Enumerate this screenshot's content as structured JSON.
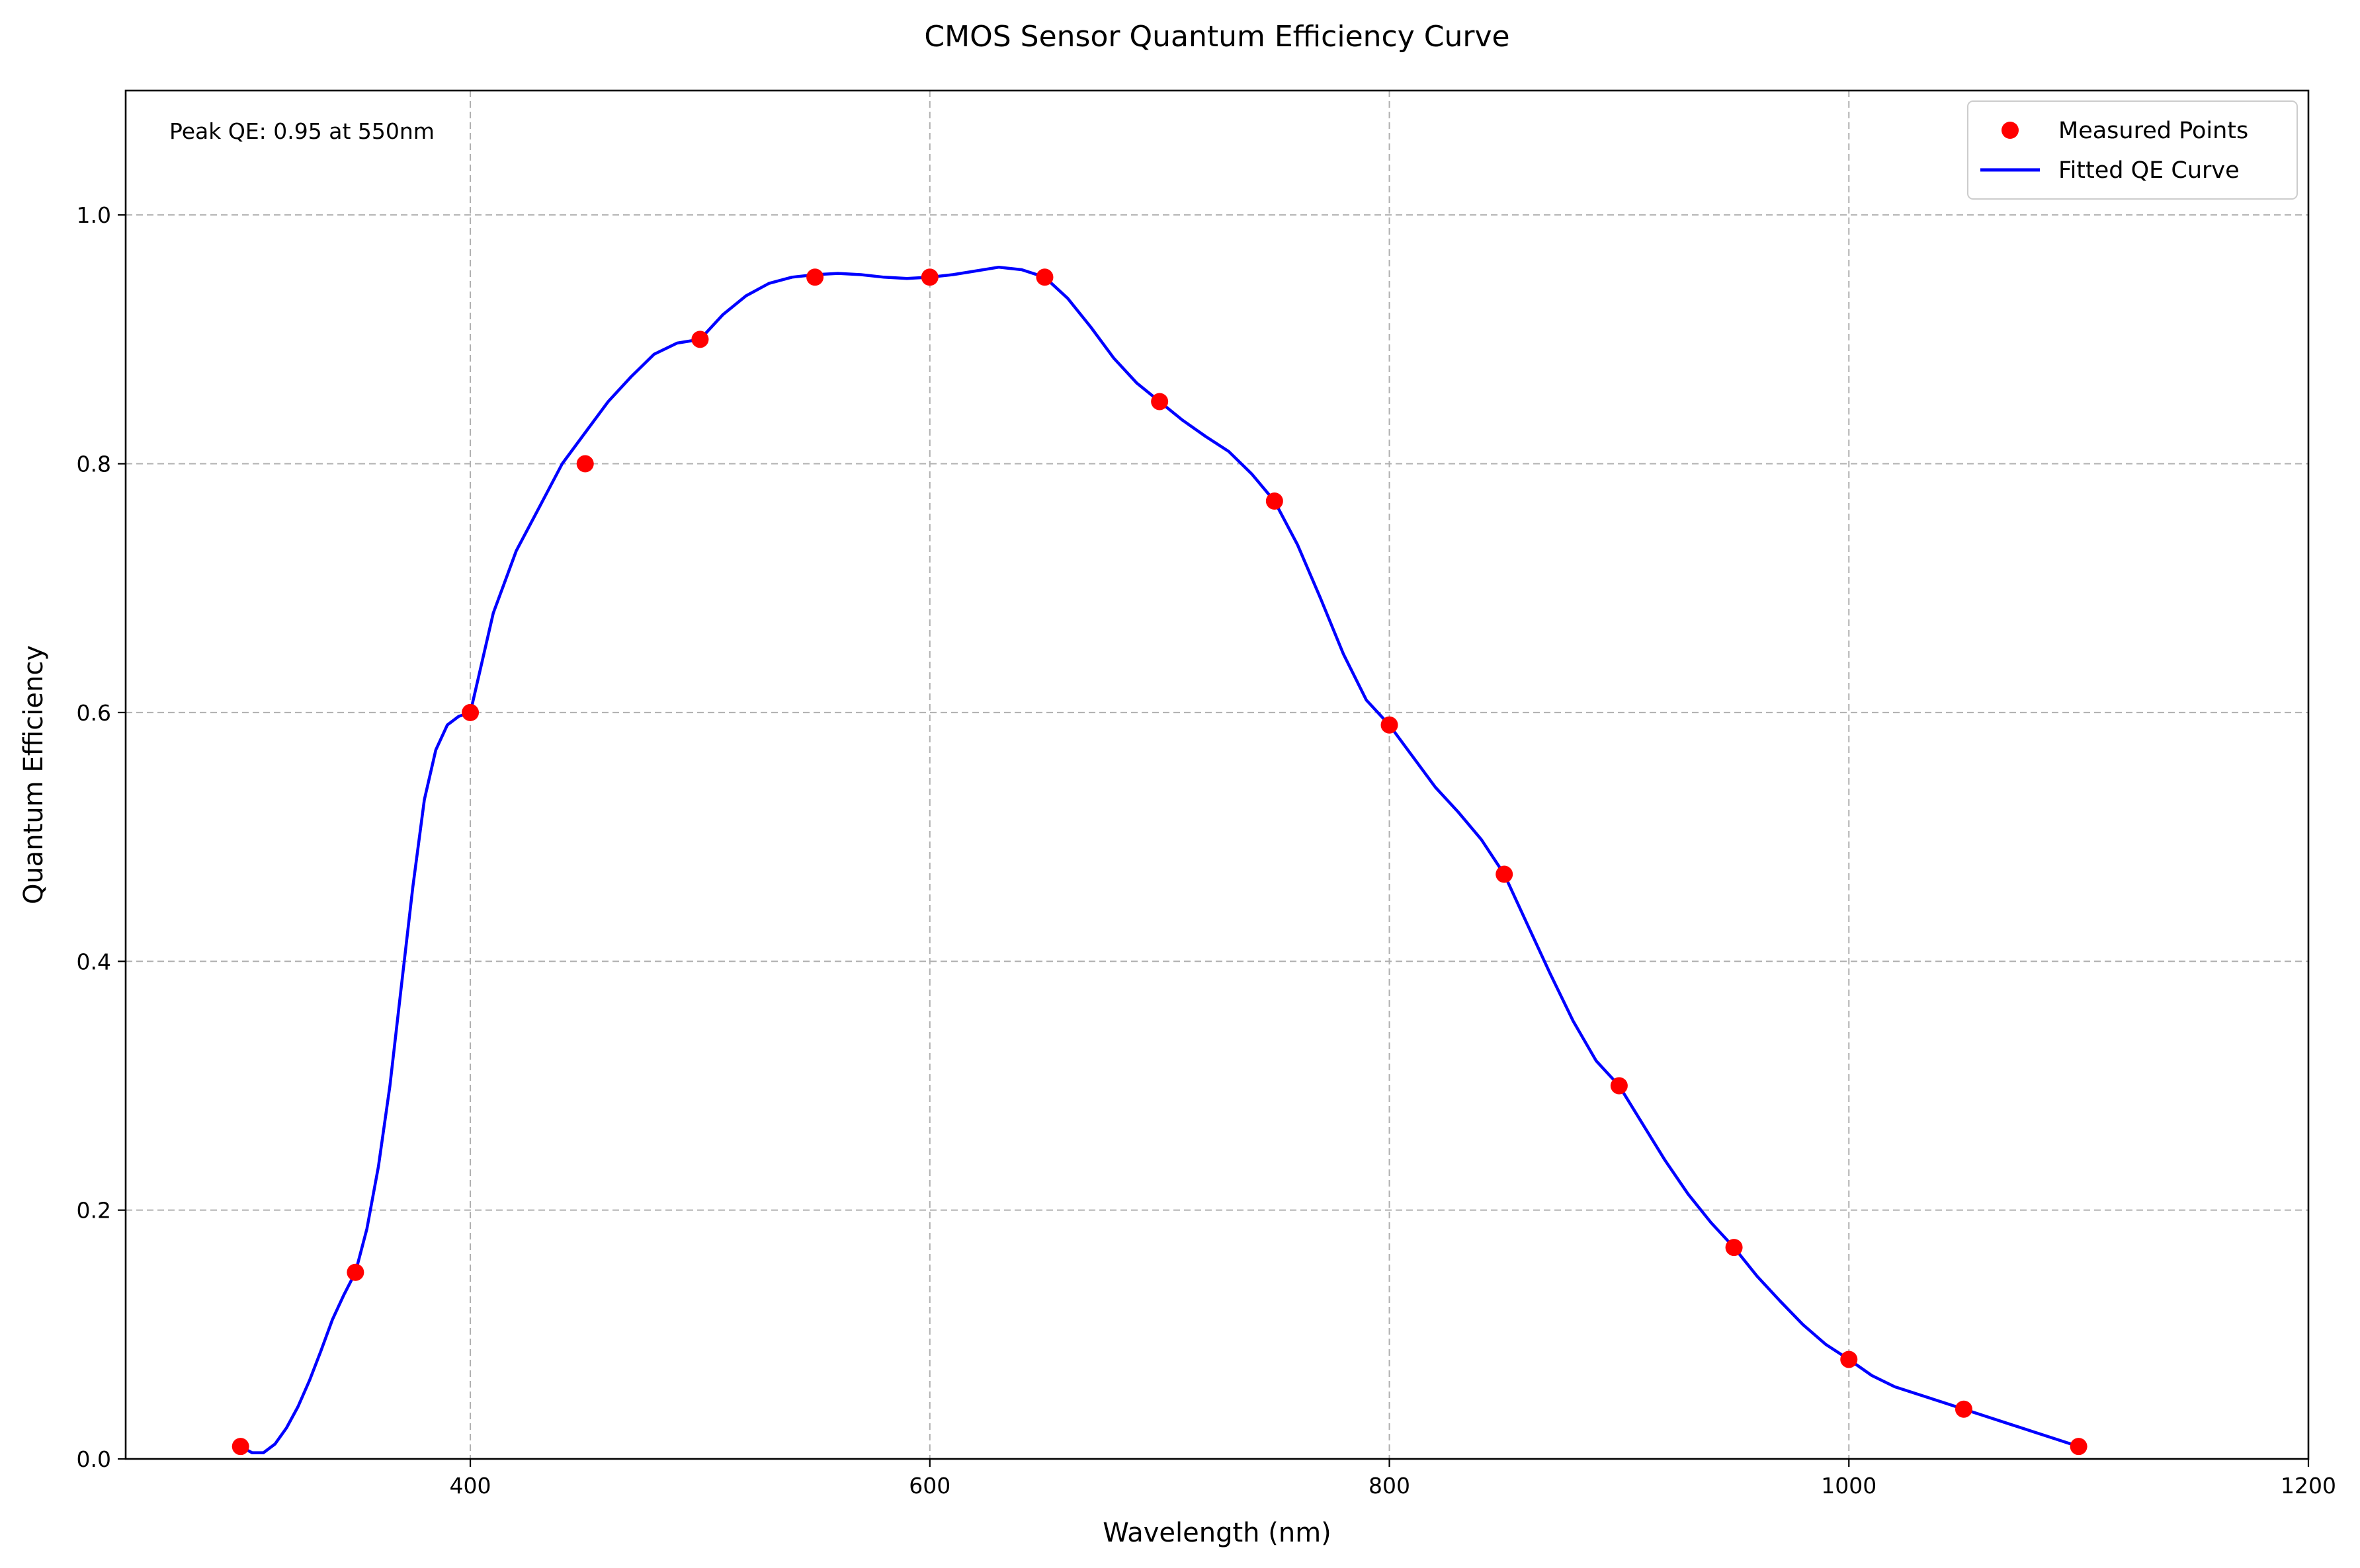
{
  "chart_data": {
    "type": "line",
    "title": "CMOS Sensor Quantum Efficiency Curve",
    "xlabel": "Wavelength (nm)",
    "ylabel": "Quantum Efficiency",
    "xlim": [
      250,
      1200
    ],
    "ylim": [
      0,
      1.1
    ],
    "xticks": [
      400,
      600,
      800,
      1000,
      1200
    ],
    "xtick_labels": [
      "400",
      "600",
      "800",
      "1000",
      "1200"
    ],
    "yticks": [
      0,
      0.2,
      0.4,
      0.6,
      0.8,
      1.0
    ],
    "ytick_labels": [
      "0.0",
      "0.2",
      "0.4",
      "0.6",
      "0.8",
      "1.0"
    ],
    "grid": true,
    "legend_position": "top-right",
    "annotation": "Peak QE: 0.95 at 550nm",
    "series": [
      {
        "name": "Measured Points",
        "kind": "scatter",
        "color": "#ff0000",
        "x": [
          300,
          350,
          400,
          450,
          500,
          550,
          600,
          650,
          700,
          750,
          800,
          850,
          900,
          950,
          1000,
          1050,
          1100
        ],
        "y": [
          0.01,
          0.15,
          0.6,
          0.8,
          0.9,
          0.95,
          0.95,
          0.95,
          0.85,
          0.77,
          0.59,
          0.47,
          0.3,
          0.17,
          0.08,
          0.04,
          0.01
        ]
      },
      {
        "name": "Fitted QE Curve",
        "kind": "line",
        "color": "#0000ff",
        "x": [
          300,
          305,
          310,
          315,
          320,
          325,
          330,
          335,
          340,
          345,
          350,
          355,
          360,
          365,
          370,
          375,
          380,
          385,
          390,
          395,
          400,
          410,
          420,
          430,
          440,
          450,
          460,
          470,
          480,
          490,
          500,
          510,
          520,
          530,
          540,
          550,
          560,
          570,
          580,
          590,
          600,
          610,
          620,
          630,
          640,
          650,
          660,
          670,
          680,
          690,
          700,
          710,
          720,
          730,
          740,
          750,
          760,
          770,
          780,
          790,
          800,
          810,
          820,
          830,
          840,
          850,
          860,
          870,
          880,
          890,
          900,
          910,
          920,
          930,
          940,
          950,
          960,
          970,
          980,
          990,
          1000,
          1010,
          1020,
          1030,
          1040,
          1050,
          1060,
          1070,
          1080,
          1090,
          1100
        ],
        "y": [
          0.01,
          0.005,
          0.005,
          0.012,
          0.025,
          0.042,
          0.063,
          0.087,
          0.112,
          0.132,
          0.15,
          0.185,
          0.235,
          0.3,
          0.38,
          0.46,
          0.53,
          0.57,
          0.59,
          0.597,
          0.6,
          0.68,
          0.73,
          0.765,
          0.8,
          0.825,
          0.85,
          0.87,
          0.888,
          0.897,
          0.9,
          0.92,
          0.935,
          0.945,
          0.95,
          0.952,
          0.953,
          0.952,
          0.95,
          0.949,
          0.95,
          0.952,
          0.955,
          0.958,
          0.956,
          0.95,
          0.933,
          0.91,
          0.885,
          0.865,
          0.85,
          0.835,
          0.822,
          0.81,
          0.792,
          0.77,
          0.735,
          0.692,
          0.647,
          0.61,
          0.59,
          0.565,
          0.54,
          0.52,
          0.498,
          0.47,
          0.43,
          0.39,
          0.352,
          0.32,
          0.3,
          0.27,
          0.24,
          0.213,
          0.19,
          0.17,
          0.147,
          0.127,
          0.108,
          0.092,
          0.08,
          0.067,
          0.058,
          0.052,
          0.046,
          0.04,
          0.034,
          0.028,
          0.022,
          0.016,
          0.01
        ]
      }
    ]
  }
}
